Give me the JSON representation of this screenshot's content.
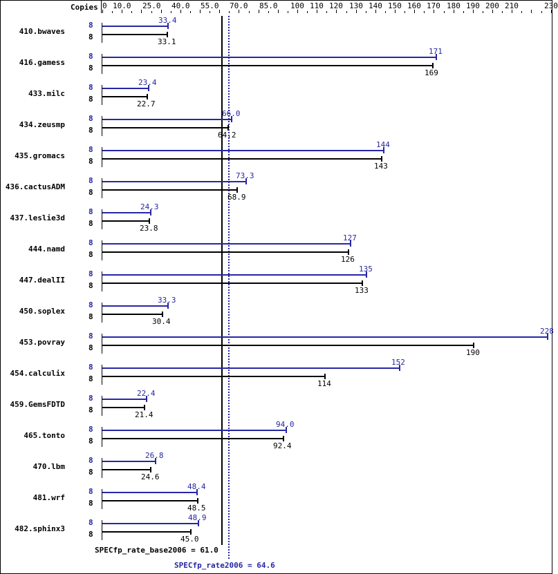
{
  "chart_data": {
    "type": "bar",
    "orientation": "horizontal",
    "title": "",
    "xlabel": "Copies",
    "ylabel": "",
    "xlim": [
      0,
      230
    ],
    "tick_labels": [
      "0",
      "10.0",
      "25.0",
      "40.0",
      "55.0",
      "70.0",
      "85.0",
      "100",
      "110",
      "120",
      "130",
      "140",
      "150",
      "160",
      "170",
      "180",
      "190",
      "200",
      "210",
      "230"
    ],
    "tick_values": [
      0,
      10,
      25,
      40,
      55,
      70,
      85,
      100,
      110,
      120,
      130,
      140,
      150,
      160,
      170,
      180,
      190,
      200,
      210,
      230
    ],
    "legend_position": "none",
    "grid": false,
    "categories": [
      "410.bwaves",
      "416.gamess",
      "433.milc",
      "434.zeusmp",
      "435.gromacs",
      "436.cactusADM",
      "437.leslie3d",
      "444.namd",
      "447.dealII",
      "450.soplex",
      "453.povray",
      "454.calculix",
      "459.GemsFDTD",
      "465.tonto",
      "470.lbm",
      "481.wrf",
      "482.sphinx3"
    ],
    "series": [
      {
        "name": "SPECfp_rate2006 (peak)",
        "color": "#2626a3",
        "copies": [
          8,
          8,
          8,
          8,
          8,
          8,
          8,
          8,
          8,
          8,
          8,
          8,
          8,
          8,
          8,
          8,
          8
        ],
        "values": [
          33.4,
          171,
          23.4,
          66.0,
          144,
          73.3,
          24.3,
          127,
          135,
          33.3,
          228,
          152,
          22.4,
          94.0,
          26.8,
          48.4,
          48.9
        ],
        "labels": [
          "33.4",
          "171",
          "23.4",
          "66.0",
          "144",
          "73.3",
          "24.3",
          "127",
          "135",
          "33.3",
          "228",
          "152",
          "22.4",
          "94.0",
          "26.8",
          "48.4",
          "48.9"
        ]
      },
      {
        "name": "SPECfp_rate_base2006",
        "color": "#000000",
        "copies": [
          8,
          8,
          8,
          8,
          8,
          8,
          8,
          8,
          8,
          8,
          8,
          8,
          8,
          8,
          8,
          8,
          8
        ],
        "values": [
          33.1,
          169,
          22.7,
          64.2,
          143,
          68.9,
          23.8,
          126,
          133,
          30.4,
          190,
          114,
          21.4,
          92.4,
          24.6,
          48.5,
          45.0
        ],
        "labels": [
          "33.1",
          "169",
          "22.7",
          "64.2",
          "143",
          "68.9",
          "23.8",
          "126",
          "133",
          "30.4",
          "190",
          "114",
          "21.4",
          "92.4",
          "24.6",
          "48.5",
          "45.0"
        ]
      }
    ],
    "reference_lines": [
      {
        "name": "SPECfp_rate_base2006",
        "value": 61.0,
        "label": "SPECfp_rate_base2006 = 61.0",
        "style": "solid",
        "color": "#000000"
      },
      {
        "name": "SPECfp_rate2006",
        "value": 64.6,
        "label": "SPECfp_rate2006 = 64.6",
        "style": "dotted",
        "color": "#2626a3"
      }
    ]
  },
  "header": {
    "copies_label": "Copies"
  }
}
